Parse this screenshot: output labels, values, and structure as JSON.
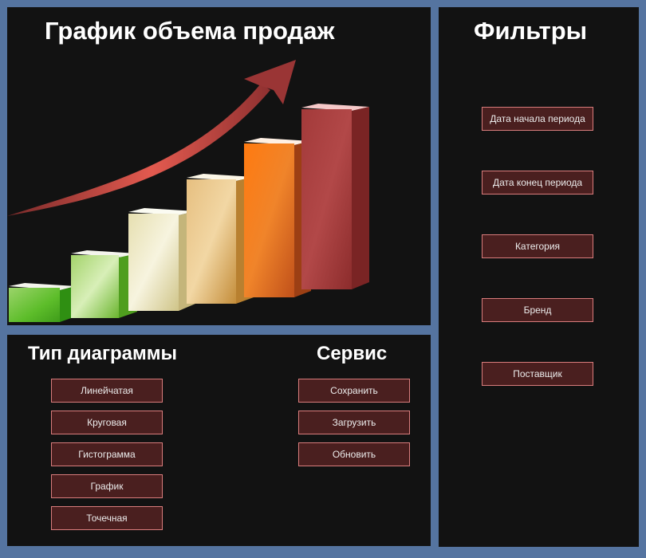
{
  "chart_panel": {
    "title": "График объема продаж",
    "illustration": "growth-bar-chart-with-arrow-illustration"
  },
  "filters_panel": {
    "title": "Фильтры",
    "buttons": [
      {
        "label": "Дата начала периода"
      },
      {
        "label": "Дата конец периода"
      },
      {
        "label": "Категория"
      },
      {
        "label": "Бренд"
      },
      {
        "label": "Поставщик"
      }
    ]
  },
  "chart_type_panel": {
    "title": "Тип диаграммы",
    "buttons": [
      {
        "label": "Линейчатая"
      },
      {
        "label": "Круговая"
      },
      {
        "label": "Гистограмма"
      },
      {
        "label": "График"
      },
      {
        "label": "Точечная"
      }
    ]
  },
  "service_panel": {
    "title": "Сервис",
    "buttons": [
      {
        "label": "Сохранить"
      },
      {
        "label": "Загрузить"
      },
      {
        "label": "Обновить"
      }
    ]
  },
  "colors": {
    "frame": "#5574a0",
    "panel_background": "#121212",
    "button_background": "#4a1f1f",
    "button_border": "#d97c7c",
    "heading_text": "#ffffff"
  }
}
